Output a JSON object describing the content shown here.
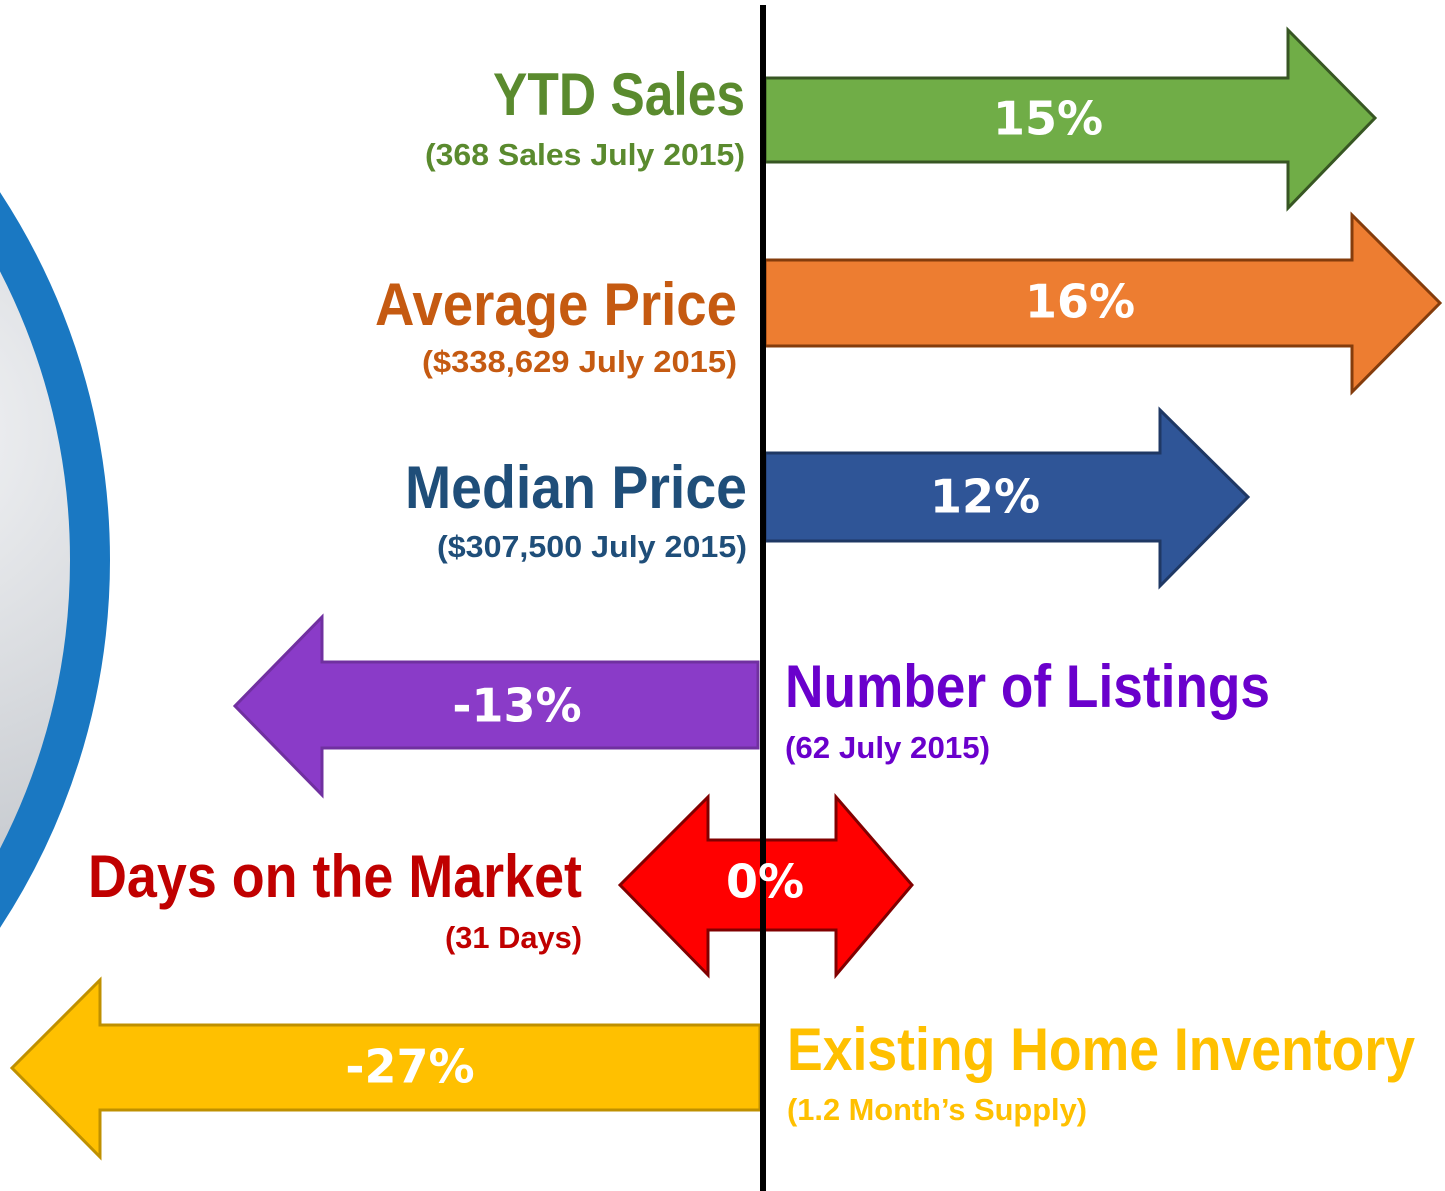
{
  "items": [
    {
      "label": "YTD Sales",
      "note": "(368 Sales July 2015)",
      "change": "15%"
    },
    {
      "label": "Average Price",
      "note": "($338,629 July 2015)",
      "change": "16%"
    },
    {
      "label": "Median Price",
      "note": "($307,500 July 2015)",
      "change": "12%"
    },
    {
      "label": "Number of Listings",
      "note": "(62 July 2015)",
      "change": "-13%"
    },
    {
      "label": "Days on the Market",
      "note": "(31 Days)",
      "change": "0%"
    },
    {
      "label": "Existing Home Inventory",
      "note": "(1.2 Month’s Supply)",
      "change": "-27%"
    }
  ]
}
